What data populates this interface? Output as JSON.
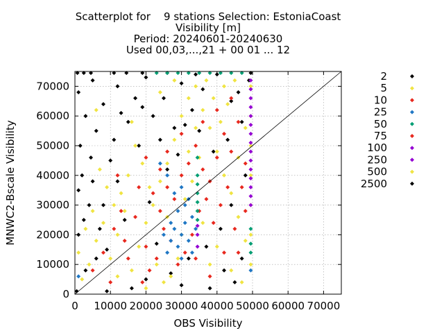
{
  "chart_data": {
    "type": "scatter",
    "title_lines": [
      "Scatterplot for    9 stations Selection: EstoniaCoast",
      "Visibility [m]",
      "Period: 20240601-20240630",
      "Used 00,03,...,21 + 00 01 ... 12"
    ],
    "xlabel": "OBS Visibility",
    "ylabel": "MNWC2-Bscale Visibility",
    "xlim": [
      0,
      75000
    ],
    "ylim": [
      0,
      75000
    ],
    "x_ticks": [
      "0",
      "10000",
      "20000",
      "30000",
      "40000",
      "50000",
      "60000",
      "70000"
    ],
    "x_tick_values": [
      0,
      10000,
      20000,
      30000,
      40000,
      50000,
      60000,
      70000
    ],
    "y_ticks": [
      "0",
      "10000",
      "20000",
      "30000",
      "40000",
      "50000",
      "60000",
      "70000"
    ],
    "y_tick_values": [
      0,
      10000,
      20000,
      30000,
      40000,
      50000,
      60000,
      70000
    ],
    "grid": true,
    "diagonal_line": true,
    "legend_position": "right",
    "legend": [
      {
        "label": "2",
        "color": "#000000"
      },
      {
        "label": "5",
        "color": "#f0e442"
      },
      {
        "label": "10",
        "color": "#e8281e"
      },
      {
        "label": "25",
        "color": "#1f77c4"
      },
      {
        "label": "50",
        "color": "#009e73"
      },
      {
        "label": "75",
        "color": "#e8281e"
      },
      {
        "label": "100",
        "color": "#9400d3"
      },
      {
        "label": "250",
        "color": "#9400d3"
      },
      {
        "label": "500",
        "color": "#f0e442"
      },
      {
        "label": "2500",
        "color": "#000000"
      }
    ],
    "series": [
      {
        "label": "2",
        "color": "#000000",
        "points": [
          [
            1000,
            68000
          ],
          [
            3000,
            60000
          ],
          [
            5000,
            72000
          ],
          [
            8000,
            64000
          ],
          [
            12000,
            70000
          ],
          [
            6000,
            55000
          ],
          [
            15000,
            58000
          ],
          [
            20000,
            73000
          ],
          [
            25000,
            66000
          ],
          [
            30000,
            71000
          ],
          [
            10000,
            45000
          ],
          [
            2000,
            40000
          ],
          [
            4000,
            30000
          ],
          [
            7000,
            22000
          ],
          [
            9000,
            15000
          ],
          [
            3000,
            8000
          ],
          [
            1000,
            35000
          ],
          [
            12000,
            38000
          ],
          [
            14000,
            25000
          ],
          [
            18000,
            50000
          ],
          [
            22000,
            60000
          ],
          [
            26000,
            42000
          ],
          [
            28000,
            56000
          ],
          [
            33000,
            62000
          ],
          [
            36000,
            69000
          ],
          [
            40000,
            74000
          ],
          [
            44000,
            65000
          ],
          [
            47000,
            58000
          ],
          [
            42000,
            8000
          ],
          [
            45000,
            4000
          ],
          [
            38000,
            2000
          ],
          [
            30000,
            3000
          ],
          [
            20000,
            5000
          ],
          [
            16000,
            2000
          ],
          [
            9000,
            1000
          ],
          [
            1000,
            20000
          ],
          [
            2500,
            25000
          ],
          [
            5000,
            38000
          ],
          [
            11000,
            52000
          ],
          [
            13000,
            61000
          ],
          [
            17000,
            66000
          ],
          [
            24000,
            52000
          ],
          [
            29000,
            47000
          ],
          [
            35000,
            55000
          ],
          [
            39000,
            48000
          ],
          [
            43000,
            52000
          ],
          [
            46000,
            68000
          ],
          [
            49000,
            72000
          ],
          [
            6000,
            12000
          ],
          [
            8000,
            30000
          ],
          [
            4500,
            46000
          ],
          [
            21000,
            31000
          ],
          [
            23000,
            17000
          ],
          [
            27000,
            7000
          ],
          [
            32000,
            12000
          ],
          [
            37000,
            16000
          ],
          [
            41000,
            22000
          ],
          [
            44000,
            30000
          ],
          [
            47000,
            12000
          ],
          [
            48000,
            40000
          ],
          [
            34000,
            74000
          ],
          [
            31000,
            57000
          ],
          [
            19000,
            63000
          ],
          [
            14500,
            74500
          ],
          [
            700,
            74500
          ],
          [
            2500,
            74500
          ],
          [
            4500,
            74500
          ],
          [
            11000,
            74500
          ],
          [
            19000,
            74500
          ],
          [
            26000,
            74500
          ],
          [
            49500,
            74500
          ],
          [
            500,
            1000
          ],
          [
            1500,
            50000
          ]
        ]
      },
      {
        "label": "5",
        "color": "#f0e442",
        "points": [
          [
            2000,
            5000
          ],
          [
            4000,
            10000
          ],
          [
            6000,
            18000
          ],
          [
            8000,
            24000
          ],
          [
            10000,
            12000
          ],
          [
            12000,
            20000
          ],
          [
            14000,
            28000
          ],
          [
            16000,
            8000
          ],
          [
            18000,
            16000
          ],
          [
            20000,
            24000
          ],
          [
            22000,
            30000
          ],
          [
            24000,
            38000
          ],
          [
            26000,
            44000
          ],
          [
            28000,
            52000
          ],
          [
            30000,
            60000
          ],
          [
            32000,
            66000
          ],
          [
            34000,
            70000
          ],
          [
            36000,
            62000
          ],
          [
            38000,
            56000
          ],
          [
            40000,
            48000
          ],
          [
            42000,
            40000
          ],
          [
            44000,
            34000
          ],
          [
            46000,
            26000
          ],
          [
            48000,
            18000
          ],
          [
            49500,
            10000
          ],
          [
            49500,
            20000
          ],
          [
            49500,
            30000
          ],
          [
            49500,
            40000
          ],
          [
            49500,
            50000
          ],
          [
            49500,
            60000
          ],
          [
            49500,
            70000
          ],
          [
            45000,
            72000
          ],
          [
            43000,
            64000
          ],
          [
            41000,
            58000
          ],
          [
            39000,
            66000
          ],
          [
            37000,
            72000
          ],
          [
            35000,
            46000
          ],
          [
            33000,
            38000
          ],
          [
            31000,
            32000
          ],
          [
            29000,
            12000
          ],
          [
            27000,
            6000
          ],
          [
            25000,
            4000
          ],
          [
            23000,
            10000
          ],
          [
            21000,
            36000
          ],
          [
            19000,
            44000
          ],
          [
            17000,
            50000
          ],
          [
            15000,
            40000
          ],
          [
            13000,
            34000
          ],
          [
            11000,
            30000
          ],
          [
            9000,
            36000
          ],
          [
            7000,
            42000
          ],
          [
            5000,
            28000
          ],
          [
            3000,
            22000
          ],
          [
            1000,
            14000
          ],
          [
            36000,
            24000
          ],
          [
            40000,
            16000
          ],
          [
            44000,
            8000
          ],
          [
            47000,
            4000
          ],
          [
            38000,
            10000
          ],
          [
            30000,
            20000
          ],
          [
            26000,
            26000
          ],
          [
            34000,
            56000
          ],
          [
            42000,
            70000
          ],
          [
            46000,
            46000
          ],
          [
            48000,
            56000
          ],
          [
            12000,
            6000
          ],
          [
            20000,
            2000
          ],
          [
            6000,
            62000
          ],
          [
            16000,
            58000
          ],
          [
            24000,
            68000
          ],
          [
            28000,
            72000
          ],
          [
            32000,
            48000
          ]
        ]
      },
      {
        "label": "10",
        "color": "#e8281e",
        "points": [
          [
            5000,
            8000
          ],
          [
            8000,
            14000
          ],
          [
            11000,
            22000
          ],
          [
            14000,
            18000
          ],
          [
            17000,
            26000
          ],
          [
            20000,
            16000
          ],
          [
            22000,
            34000
          ],
          [
            24000,
            28000
          ],
          [
            26000,
            36000
          ],
          [
            28000,
            32000
          ],
          [
            30000,
            40000
          ],
          [
            32000,
            44000
          ],
          [
            34000,
            50000
          ],
          [
            36000,
            42000
          ],
          [
            38000,
            38000
          ],
          [
            40000,
            46000
          ],
          [
            42000,
            54000
          ],
          [
            44000,
            48000
          ],
          [
            46000,
            58000
          ],
          [
            48000,
            44000
          ],
          [
            43000,
            36000
          ],
          [
            41000,
            30000
          ],
          [
            39000,
            24000
          ],
          [
            37000,
            32000
          ],
          [
            35000,
            28000
          ],
          [
            33000,
            20000
          ],
          [
            31000,
            14000
          ],
          [
            29000,
            10000
          ],
          [
            27000,
            18000
          ],
          [
            25000,
            22000
          ],
          [
            23000,
            12000
          ],
          [
            21000,
            8000
          ],
          [
            19000,
            4000
          ],
          [
            15000,
            12000
          ],
          [
            13000,
            28000
          ],
          [
            18000,
            36000
          ],
          [
            26000,
            48000
          ],
          [
            30000,
            54000
          ],
          [
            36000,
            58000
          ],
          [
            40000,
            62000
          ],
          [
            44000,
            66000
          ],
          [
            47000,
            36000
          ],
          [
            45000,
            22000
          ],
          [
            42000,
            14000
          ],
          [
            38000,
            6000
          ],
          [
            34000,
            12000
          ],
          [
            10000,
            4000
          ],
          [
            12000,
            40000
          ],
          [
            48000,
            28000
          ],
          [
            46000,
            14000
          ],
          [
            24000,
            42000
          ],
          [
            20000,
            46000
          ]
        ]
      },
      {
        "label": "25",
        "color": "#1f77c4",
        "points": [
          [
            26000,
            14000
          ],
          [
            27000,
            18000
          ],
          [
            28000,
            22000
          ],
          [
            29000,
            16000
          ],
          [
            30000,
            20000
          ],
          [
            31000,
            24000
          ],
          [
            32000,
            18000
          ],
          [
            33000,
            26000
          ],
          [
            30000,
            12000
          ],
          [
            29000,
            28000
          ],
          [
            31000,
            30000
          ],
          [
            27000,
            24000
          ],
          [
            25000,
            20000
          ],
          [
            34000,
            22000
          ],
          [
            32000,
            32000
          ],
          [
            28000,
            34000
          ],
          [
            30000,
            36000
          ],
          [
            26000,
            40000
          ],
          [
            24000,
            44000
          ],
          [
            33000,
            14000
          ],
          [
            1000,
            6000
          ],
          [
            49500,
            8000
          ]
        ]
      },
      {
        "label": "50",
        "color": "#009e73",
        "points": [
          [
            23000,
            74500
          ],
          [
            26000,
            74500
          ],
          [
            29000,
            74500
          ],
          [
            32000,
            74500
          ],
          [
            35000,
            74500
          ],
          [
            38000,
            74500
          ],
          [
            41000,
            74500
          ],
          [
            44000,
            74500
          ],
          [
            47000,
            74500
          ],
          [
            34500,
            25000
          ],
          [
            34500,
            28000
          ],
          [
            34500,
            31000
          ],
          [
            34500,
            34000
          ],
          [
            34500,
            37000
          ],
          [
            34500,
            40000
          ],
          [
            34500,
            46000
          ],
          [
            49500,
            14000
          ],
          [
            49500,
            17000
          ],
          [
            49500,
            22000
          ]
        ]
      },
      {
        "label": "100",
        "color": "#9400d3",
        "points": [
          [
            49500,
            30000
          ],
          [
            49500,
            33000
          ],
          [
            49500,
            36000
          ],
          [
            49500,
            39000
          ],
          [
            49500,
            42000
          ],
          [
            49500,
            45000
          ],
          [
            49500,
            48000
          ],
          [
            49500,
            51000
          ],
          [
            49500,
            54000
          ],
          [
            49500,
            57000
          ],
          [
            49500,
            60000
          ],
          [
            49500,
            63000
          ],
          [
            49500,
            66000
          ],
          [
            49500,
            69000
          ],
          [
            49500,
            72000
          ],
          [
            34500,
            16000
          ],
          [
            34500,
            20000
          ],
          [
            34500,
            23000
          ]
        ]
      }
    ]
  }
}
